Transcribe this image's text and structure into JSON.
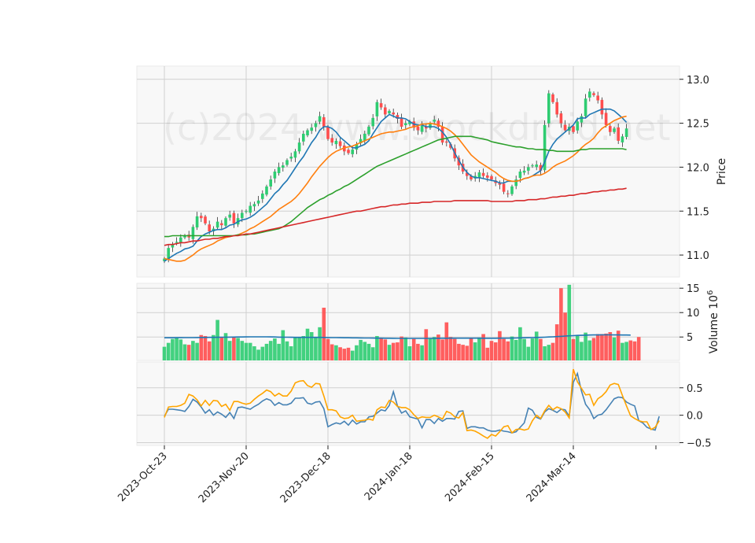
{
  "chart_data": [
    {
      "type": "candlestick",
      "panel": "price",
      "ylabel": "Price",
      "ylim": [
        10.75,
        13.15
      ],
      "yticks": [
        "11.0",
        "11.5",
        "12.0",
        "12.5",
        "13.0"
      ],
      "watermark": "(c)2024 www.stockdroid.net",
      "grid": true,
      "up_color": "#2ecc71",
      "down_color": "#ff4d4d",
      "close": [
        10.96,
        11.08,
        11.12,
        11.15,
        11.2,
        11.22,
        11.2,
        11.32,
        11.44,
        11.42,
        11.36,
        11.27,
        11.3,
        11.38,
        11.34,
        11.42,
        11.46,
        11.36,
        11.42,
        11.48,
        11.5,
        11.56,
        11.58,
        11.62,
        11.7,
        11.78,
        11.86,
        11.95,
        12.0,
        12.02,
        12.08,
        12.12,
        12.18,
        12.28,
        12.38,
        12.42,
        12.45,
        12.5,
        12.58,
        12.46,
        12.32,
        12.28,
        12.3,
        12.24,
        12.18,
        12.16,
        12.2,
        12.26,
        12.32,
        12.38,
        12.46,
        12.56,
        12.74,
        12.68,
        12.6,
        12.64,
        12.6,
        12.55,
        12.46,
        12.5,
        12.52,
        12.45,
        12.42,
        12.47,
        12.44,
        12.5,
        12.54,
        12.46,
        12.28,
        12.28,
        12.22,
        12.1,
        12.02,
        11.95,
        11.9,
        11.86,
        11.9,
        11.94,
        11.9,
        11.88,
        11.86,
        11.82,
        11.8,
        11.72,
        11.7,
        11.78,
        11.86,
        11.95,
        11.96,
        12.0,
        12.02,
        12.03,
        11.96,
        12.48,
        12.84,
        12.74,
        12.6,
        12.5,
        12.42,
        12.46,
        12.4,
        12.52,
        12.58,
        12.78,
        12.86,
        12.82,
        12.76,
        12.6,
        12.48,
        12.4,
        12.44,
        12.3,
        12.35,
        12.44
      ],
      "moving_averages": [
        {
          "color": "#1f77b4",
          "values": [
            10.93,
            10.96,
            10.99,
            11.02,
            11.04,
            11.07,
            11.08,
            11.1,
            11.16,
            11.21,
            11.24,
            11.26,
            11.28,
            11.29,
            11.29,
            11.31,
            11.34,
            11.35,
            11.38,
            11.4,
            11.41,
            11.43,
            11.46,
            11.5,
            11.54,
            11.58,
            11.64,
            11.7,
            11.74,
            11.8,
            11.85,
            11.92,
            11.99,
            12.06,
            12.12,
            12.2,
            12.28,
            12.34,
            12.42,
            12.46,
            12.46,
            12.44,
            12.4,
            12.34,
            12.3,
            12.26,
            12.22,
            12.22,
            12.24,
            12.26,
            12.3,
            12.38,
            12.45,
            12.52,
            12.56,
            12.6,
            12.58,
            12.56,
            12.56,
            12.55,
            12.52,
            12.49,
            12.48,
            12.48,
            12.46,
            12.46,
            12.46,
            12.44,
            12.4,
            12.34,
            12.26,
            12.16,
            12.08,
            12.0,
            11.94,
            11.9,
            11.88,
            11.88,
            11.87,
            11.86,
            11.85,
            11.84,
            11.82,
            11.82,
            11.84,
            11.84,
            11.84,
            11.85,
            11.87,
            11.88,
            11.9,
            11.93,
            11.96,
            12.06,
            12.18,
            12.26,
            12.32,
            12.36,
            12.4,
            12.44,
            12.48,
            12.55,
            12.56,
            12.56,
            12.6,
            12.62,
            12.64,
            12.66,
            12.66,
            12.66,
            12.64,
            12.6,
            12.56,
            12.51
          ]
        },
        {
          "color": "#ff7f0e",
          "values": [
            10.96,
            10.95,
            10.94,
            10.93,
            10.93,
            10.94,
            10.97,
            11.0,
            11.04,
            11.07,
            11.09,
            11.11,
            11.13,
            11.16,
            11.18,
            11.2,
            11.21,
            11.22,
            11.23,
            11.25,
            11.27,
            11.3,
            11.32,
            11.35,
            11.38,
            11.41,
            11.44,
            11.48,
            11.52,
            11.55,
            11.58,
            11.61,
            11.65,
            11.7,
            11.76,
            11.82,
            11.89,
            11.95,
            12.01,
            12.06,
            12.11,
            12.15,
            12.18,
            12.2,
            12.22,
            12.23,
            12.24,
            12.26,
            12.28,
            12.3,
            12.32,
            12.34,
            12.36,
            12.38,
            12.39,
            12.4,
            12.4,
            12.41,
            12.42,
            12.43,
            12.45,
            12.46,
            12.47,
            12.49,
            12.49,
            12.5,
            12.49,
            12.48,
            12.46,
            12.44,
            12.41,
            12.37,
            12.32,
            12.26,
            12.2,
            12.14,
            12.1,
            12.06,
            12.03,
            12.0,
            11.97,
            11.94,
            11.9,
            11.87,
            11.85,
            11.84,
            11.84,
            11.85,
            11.87,
            11.88,
            11.9,
            11.91,
            11.91,
            11.93,
            11.96,
            12.0,
            12.03,
            12.05,
            12.07,
            12.1,
            12.13,
            12.17,
            12.22,
            12.26,
            12.29,
            12.33,
            12.39,
            12.44,
            12.47,
            12.5,
            12.53,
            12.55,
            12.57,
            12.58
          ]
        },
        {
          "color": "#2ca02c",
          "values": [
            11.21,
            11.21,
            11.22,
            11.22,
            11.22,
            11.22,
            11.22,
            11.22,
            11.22,
            11.22,
            11.22,
            11.22,
            11.22,
            11.22,
            11.22,
            11.22,
            11.22,
            11.22,
            11.23,
            11.23,
            11.23,
            11.24,
            11.24,
            11.25,
            11.26,
            11.27,
            11.28,
            11.29,
            11.3,
            11.32,
            11.35,
            11.38,
            11.42,
            11.46,
            11.5,
            11.54,
            11.57,
            11.6,
            11.63,
            11.65,
            11.68,
            11.7,
            11.73,
            11.75,
            11.78,
            11.8,
            11.83,
            11.86,
            11.89,
            11.92,
            11.95,
            11.98,
            12.01,
            12.03,
            12.05,
            12.07,
            12.09,
            12.11,
            12.13,
            12.15,
            12.17,
            12.19,
            12.21,
            12.23,
            12.25,
            12.27,
            12.29,
            12.31,
            12.32,
            12.33,
            12.34,
            12.35,
            12.35,
            12.35,
            12.35,
            12.35,
            12.34,
            12.33,
            12.32,
            12.31,
            12.29,
            12.28,
            12.27,
            12.26,
            12.25,
            12.24,
            12.23,
            12.23,
            12.22,
            12.21,
            12.21,
            12.2,
            12.2,
            12.2,
            12.19,
            12.19,
            12.18,
            12.18,
            12.18,
            12.18,
            12.18,
            12.19,
            12.2,
            12.2,
            12.21,
            12.21,
            12.21,
            12.21,
            12.21,
            12.21,
            12.21,
            12.21,
            12.21,
            12.2
          ]
        },
        {
          "color": "#d62728",
          "values": [
            11.11,
            11.12,
            11.12,
            11.13,
            11.14,
            11.14,
            11.15,
            11.16,
            11.16,
            11.17,
            11.18,
            11.18,
            11.19,
            11.19,
            11.2,
            11.21,
            11.21,
            11.22,
            11.22,
            11.23,
            11.24,
            11.24,
            11.25,
            11.26,
            11.27,
            11.28,
            11.29,
            11.3,
            11.31,
            11.32,
            11.33,
            11.34,
            11.35,
            11.36,
            11.37,
            11.38,
            11.39,
            11.4,
            11.41,
            11.42,
            11.43,
            11.44,
            11.45,
            11.46,
            11.47,
            11.48,
            11.49,
            11.5,
            11.5,
            11.51,
            11.52,
            11.53,
            11.54,
            11.55,
            11.55,
            11.56,
            11.57,
            11.57,
            11.58,
            11.58,
            11.59,
            11.59,
            11.59,
            11.6,
            11.6,
            11.6,
            11.61,
            11.61,
            11.61,
            11.61,
            11.61,
            11.62,
            11.62,
            11.62,
            11.62,
            11.62,
            11.62,
            11.62,
            11.62,
            11.62,
            11.61,
            11.61,
            11.61,
            11.61,
            11.61,
            11.61,
            11.62,
            11.62,
            11.62,
            11.63,
            11.63,
            11.63,
            11.64,
            11.64,
            11.65,
            11.66,
            11.66,
            11.67,
            11.67,
            11.68,
            11.68,
            11.69,
            11.7,
            11.7,
            11.71,
            11.72,
            11.72,
            11.73,
            11.73,
            11.74,
            11.74,
            11.75,
            11.75,
            11.76
          ]
        }
      ]
    },
    {
      "type": "bar",
      "panel": "volume",
      "ylabel": "Volume  10^6",
      "ylim": [
        0.2,
        16.0
      ],
      "yticks": [
        "5",
        "10",
        "15"
      ],
      "volume": [
        3.0,
        3.8,
        4.6,
        4.8,
        4.5,
        3.5,
        3.4,
        4.2,
        3.8,
        5.4,
        5.2,
        4.1,
        5.4,
        8.5,
        4.9,
        5.8,
        4.2,
        5.0,
        4.8,
        4.2,
        3.8,
        3.8,
        3.1,
        2.4,
        3.0,
        3.6,
        4.2,
        4.7,
        3.6,
        6.4,
        4.1,
        3.1,
        4.8,
        4.9,
        5.2,
        6.7,
        6.0,
        5.0,
        7.0,
        11.0,
        4.6,
        3.5,
        3.3,
        2.9,
        2.6,
        2.8,
        2.2,
        3.3,
        4.4,
        4.0,
        3.6,
        2.9,
        5.2,
        4.8,
        4.5,
        3.4,
        3.8,
        3.9,
        5.1,
        4.9,
        3.1,
        4.6,
        3.6,
        3.3,
        6.6,
        4.8,
        5.0,
        5.5,
        4.5,
        8.0,
        5.0,
        4.6,
        3.6,
        3.4,
        3.2,
        4.8,
        3.9,
        4.9,
        5.6,
        2.8,
        4.2,
        3.9,
        6.2,
        4.6,
        4.1,
        5.1,
        4.4,
        7.0,
        4.6,
        3.0,
        4.7,
        6.1,
        4.6,
        3.1,
        3.4,
        3.8,
        7.6,
        15.0,
        10.0,
        15.7,
        4.6,
        5.2,
        4.0,
        5.9,
        4.3,
        4.8,
        5.6,
        5.6,
        5.7,
        6.0,
        4.9,
        6.3,
        3.8,
        4.0,
        4.3,
        4.1,
        5.0
      ],
      "volume_ma": [
        4.85,
        4.85,
        4.85,
        4.86,
        4.86,
        4.87,
        4.87,
        4.88,
        4.89,
        4.9,
        4.91,
        4.92,
        4.93,
        4.94,
        4.95,
        4.96,
        4.98,
        4.99,
        5.0,
        5.01,
        5.02,
        5.03,
        5.04,
        5.04,
        5.04,
        5.03,
        5.02,
        5.0,
        4.98,
        4.96,
        4.95,
        4.94,
        4.93,
        4.93,
        4.93,
        4.93,
        4.93,
        4.93,
        4.92,
        4.91,
        4.89,
        4.88,
        4.87,
        4.86,
        4.85,
        4.84,
        4.83,
        4.82,
        4.81,
        4.8,
        4.79,
        4.78,
        4.77,
        4.76,
        4.75,
        4.74,
        4.73,
        4.72,
        4.71,
        4.71,
        4.71,
        4.71,
        4.71,
        4.71,
        4.72,
        4.72,
        4.73,
        4.74,
        4.74,
        4.75,
        4.76,
        4.77,
        4.77,
        4.77,
        4.77,
        4.77,
        4.76,
        4.76,
        4.75,
        4.75,
        4.75,
        4.75,
        4.76,
        4.76,
        4.77,
        4.78,
        4.8,
        4.82,
        4.84,
        4.86,
        4.88,
        4.9,
        4.93,
        4.96,
        5.0,
        5.04,
        5.09,
        5.14,
        5.19,
        5.24,
        5.28,
        5.32,
        5.35,
        5.38,
        5.4,
        5.42,
        5.43,
        5.44,
        5.44,
        5.44,
        5.43,
        5.42,
        5.41,
        5.4,
        5.39
      ]
    },
    {
      "type": "line",
      "panel": "oscillator",
      "ylim": [
        -0.55,
        0.97
      ],
      "yticks": [
        "−0.5",
        "0.0",
        "0.5"
      ],
      "series": [
        {
          "color": "#4682b4",
          "values": [
            -0.02,
            0.11,
            0.11,
            0.1,
            0.09,
            0.07,
            0.16,
            0.29,
            0.24,
            0.15,
            0.04,
            0.1,
            0.0,
            0.06,
            0.02,
            -0.04,
            0.05,
            -0.06,
            0.14,
            0.15,
            0.13,
            0.11,
            0.16,
            0.2,
            0.26,
            0.3,
            0.27,
            0.18,
            0.23,
            0.19,
            0.19,
            0.22,
            0.31,
            0.31,
            0.32,
            0.22,
            0.2,
            0.24,
            0.25,
            0.12,
            -0.21,
            -0.17,
            -0.14,
            -0.16,
            -0.11,
            -0.18,
            -0.09,
            -0.16,
            -0.12,
            -0.12,
            -0.03,
            -0.02,
            0.04,
            0.1,
            0.08,
            0.18,
            0.43,
            0.17,
            0.04,
            0.08,
            -0.03,
            -0.05,
            -0.07,
            -0.23,
            -0.08,
            -0.08,
            -0.15,
            -0.06,
            -0.11,
            -0.06,
            -0.06,
            -0.07,
            0.07,
            0.08,
            -0.24,
            -0.21,
            -0.21,
            -0.23,
            -0.23,
            -0.27,
            -0.29,
            -0.29,
            -0.27,
            -0.29,
            -0.3,
            -0.32,
            -0.3,
            -0.22,
            -0.14,
            0.13,
            0.09,
            -0.04,
            -0.07,
            0.06,
            0.12,
            0.09,
            0.05,
            0.11,
            0.1,
            -0.02,
            0.6,
            0.76,
            0.44,
            0.2,
            0.1,
            -0.06,
            0.0,
            0.02,
            0.1,
            0.2,
            0.3,
            0.33,
            0.32,
            0.24,
            0.2,
            0.17,
            -0.1,
            -0.14,
            -0.22,
            -0.25,
            -0.27,
            -0.02
          ]
        },
        {
          "color": "#ffa500",
          "values": [
            -0.04,
            0.15,
            0.16,
            0.16,
            0.18,
            0.22,
            0.38,
            0.35,
            0.28,
            0.17,
            0.27,
            0.18,
            0.27,
            0.26,
            0.16,
            0.2,
            0.09,
            0.25,
            0.25,
            0.22,
            0.2,
            0.22,
            0.29,
            0.35,
            0.4,
            0.46,
            0.43,
            0.35,
            0.4,
            0.35,
            0.35,
            0.44,
            0.59,
            0.62,
            0.63,
            0.54,
            0.51,
            0.58,
            0.57,
            0.35,
            0.1,
            0.1,
            0.08,
            -0.03,
            -0.06,
            -0.05,
            0.0,
            -0.11,
            -0.1,
            -0.09,
            -0.07,
            -0.09,
            0.1,
            0.15,
            0.14,
            0.27,
            0.24,
            0.16,
            0.14,
            0.14,
            0.1,
            0.01,
            -0.06,
            -0.03,
            -0.04,
            -0.04,
            0.0,
            -0.03,
            -0.07,
            0.07,
            0.04,
            -0.03,
            -0.05,
            0.05,
            -0.28,
            -0.27,
            -0.29,
            -0.33,
            -0.38,
            -0.42,
            -0.35,
            -0.38,
            -0.3,
            -0.21,
            -0.19,
            -0.32,
            -0.26,
            -0.25,
            -0.27,
            -0.25,
            -0.1,
            0.0,
            -0.06,
            0.08,
            0.18,
            0.1,
            0.15,
            0.12,
            0.06,
            -0.05,
            0.84,
            0.61,
            0.49,
            0.37,
            0.38,
            0.18,
            0.3,
            0.35,
            0.43,
            0.55,
            0.58,
            0.56,
            0.36,
            0.17,
            -0.01,
            -0.06,
            -0.1,
            -0.12,
            -0.12,
            -0.26,
            -0.22,
            -0.1
          ]
        }
      ]
    }
  ],
  "x_axis": {
    "tick_labels": [
      "2023-Oct-23",
      "2023-Nov-20",
      "2023-Dec-18",
      "2024-Jan-18",
      "2024-Feb-15",
      "2024-Mar-14"
    ],
    "tick_index": [
      0,
      20,
      40,
      60,
      80,
      100
    ]
  }
}
